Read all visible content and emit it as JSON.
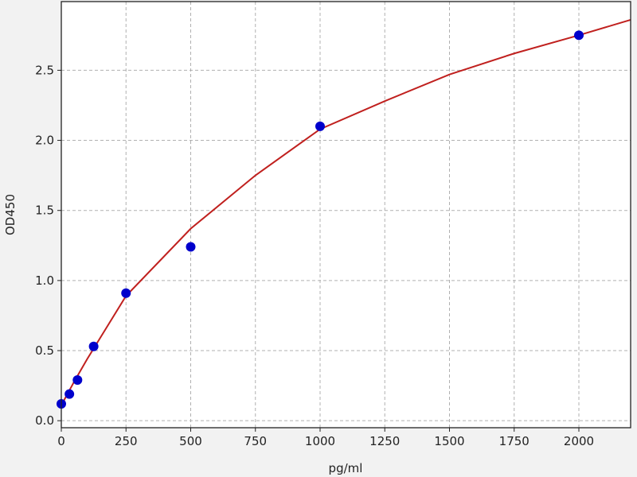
{
  "chart_data": {
    "type": "scatter",
    "title": "",
    "xlabel": "pg/ml",
    "ylabel": "OD450",
    "xlim": [
      0,
      2200
    ],
    "ylim": [
      -0.05,
      2.99
    ],
    "xticks": [
      0,
      250,
      500,
      750,
      1000,
      1250,
      1500,
      1750,
      2000
    ],
    "yticks": [
      0.0,
      0.5,
      1.0,
      1.5,
      2.0,
      2.5
    ],
    "xtick_labels": [
      "0",
      "250",
      "500",
      "750",
      "1000",
      "1250",
      "1500",
      "1750",
      "2000"
    ],
    "ytick_labels": [
      "0.0",
      "0.5",
      "1.0",
      "1.5",
      "2.0",
      "2.5"
    ],
    "grid": true,
    "series": [
      {
        "type": "scatter",
        "color": "#0000cc",
        "x": [
          0,
          31.25,
          62.5,
          125,
          250,
          500,
          1000,
          2000
        ],
        "y": [
          0.12,
          0.19,
          0.29,
          0.53,
          0.91,
          1.24,
          2.1,
          2.75
        ]
      },
      {
        "type": "line",
        "color": "#c0201e",
        "x": [
          0,
          50,
          100,
          250,
          500,
          750,
          1000,
          1250,
          1500,
          1750,
          2000,
          2200
        ],
        "y": [
          0.11,
          0.28,
          0.44,
          0.89,
          1.37,
          1.75,
          2.08,
          2.28,
          2.47,
          2.62,
          2.75,
          2.86
        ]
      }
    ]
  }
}
